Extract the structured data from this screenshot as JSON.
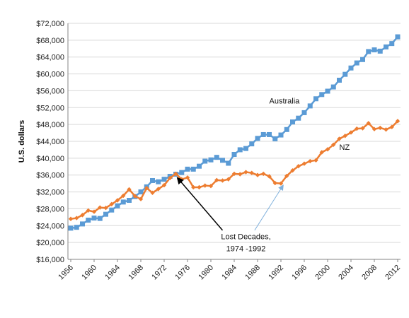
{
  "chart_data": {
    "type": "line",
    "ylabel": "U.S. dollars",
    "ylim": [
      16000,
      72000
    ],
    "xlim": [
      1956,
      2012
    ],
    "grid": true,
    "y_ticks": [
      "$16,000",
      "$20,000",
      "$24,000",
      "$28,000",
      "$32,000",
      "$36,000",
      "$40,000",
      "$44,000",
      "$48,000",
      "$52,000",
      "$56,000",
      "$60,000",
      "$64,000",
      "$68,000",
      "$72,000"
    ],
    "x_ticks": [
      "1956",
      "1960",
      "1964",
      "1968",
      "1972",
      "1976",
      "1980",
      "1984",
      "1988",
      "1992",
      "1996",
      "2000",
      "2004",
      "2008",
      "2012"
    ],
    "series": [
      {
        "name": "Australia",
        "color": "#5b9bd5",
        "marker": "square",
        "x": [
          1956,
          1957,
          1958,
          1959,
          1960,
          1961,
          1962,
          1963,
          1964,
          1965,
          1966,
          1967,
          1968,
          1969,
          1970,
          1971,
          1972,
          1973,
          1974,
          1975,
          1976,
          1977,
          1978,
          1979,
          1980,
          1981,
          1982,
          1983,
          1984,
          1985,
          1986,
          1987,
          1988,
          1989,
          1990,
          1991,
          1992,
          1993,
          1994,
          1995,
          1996,
          1997,
          1998,
          1999,
          2000,
          2001,
          2002,
          2003,
          2004,
          2005,
          2006,
          2007,
          2008,
          2009,
          2010,
          2011,
          2012
        ],
        "values": [
          23400,
          23600,
          24400,
          25300,
          25800,
          25700,
          26700,
          27700,
          28700,
          29600,
          30000,
          30900,
          32000,
          33200,
          34700,
          34400,
          35000,
          35700,
          36200,
          36600,
          37400,
          37400,
          38100,
          39300,
          39600,
          40200,
          39500,
          38800,
          40900,
          42000,
          42300,
          43400,
          44700,
          45600,
          45600,
          44600,
          45500,
          46800,
          48600,
          49500,
          50800,
          52400,
          54100,
          55100,
          55900,
          56900,
          58500,
          59900,
          61400,
          62600,
          63400,
          65300,
          65700,
          65400,
          66400,
          67200,
          68800
        ]
      },
      {
        "name": "NZ",
        "color": "#ed7d31",
        "marker": "diamond",
        "x": [
          1956,
          1957,
          1958,
          1959,
          1960,
          1961,
          1962,
          1963,
          1964,
          1965,
          1966,
          1967,
          1968,
          1969,
          1970,
          1971,
          1972,
          1973,
          1974,
          1975,
          1976,
          1977,
          1978,
          1979,
          1980,
          1981,
          1982,
          1983,
          1984,
          1985,
          1986,
          1987,
          1988,
          1989,
          1990,
          1991,
          1992,
          1993,
          1994,
          1995,
          1996,
          1997,
          1998,
          1999,
          2000,
          2001,
          2002,
          2003,
          2004,
          2005,
          2006,
          2007,
          2008,
          2009,
          2010,
          2011,
          2012
        ],
        "values": [
          25600,
          25800,
          26500,
          27600,
          27300,
          28300,
          28200,
          29100,
          30000,
          31100,
          32600,
          31000,
          30300,
          32900,
          31800,
          32700,
          33600,
          35300,
          36300,
          35000,
          35400,
          33100,
          33100,
          33500,
          33400,
          34800,
          34700,
          35000,
          36300,
          36200,
          36700,
          36500,
          36000,
          36300,
          35700,
          34100,
          34000,
          35800,
          37100,
          38100,
          38700,
          39300,
          39500,
          41400,
          42100,
          43200,
          44600,
          45300,
          46100,
          47000,
          47100,
          48300,
          46900,
          47200,
          46800,
          47400,
          48800
        ]
      }
    ],
    "annotations": [
      {
        "text": "Australia",
        "x": 1990,
        "y": 53000
      },
      {
        "text": "NZ",
        "x": 2002,
        "y": 42000
      },
      {
        "lines": [
          "Lost Decades,",
          "1974 -1992"
        ],
        "x": 1986,
        "y": 20800
      }
    ]
  }
}
